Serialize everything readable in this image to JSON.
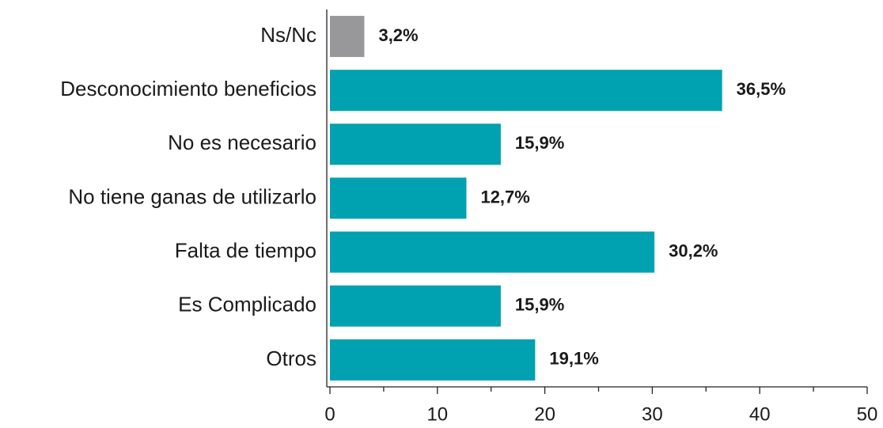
{
  "chart_data": {
    "type": "bar",
    "orientation": "horizontal",
    "categories": [
      "Ns/Nc",
      "Desconocimiento beneficios",
      "No es necesario",
      "No tiene ganas de utilizarlo",
      "Falta de tiempo",
      "Es Complicado",
      "Otros"
    ],
    "values": [
      3.2,
      36.5,
      15.9,
      12.7,
      30.2,
      15.9,
      19.1
    ],
    "value_labels": [
      "3,2%",
      "36,5%",
      "15,9%",
      "12,7%",
      "30,2%",
      "15,9%",
      "19,1%"
    ],
    "colors": [
      "#98989a",
      "#00a1b0",
      "#00a1b0",
      "#00a1b0",
      "#00a1b0",
      "#00a1b0",
      "#00a1b0"
    ],
    "xlim": [
      0,
      50
    ],
    "xticks": [
      0,
      10,
      20,
      30,
      40,
      50
    ],
    "xminorticks": [
      5,
      15,
      25,
      35,
      45
    ],
    "grid": false
  }
}
